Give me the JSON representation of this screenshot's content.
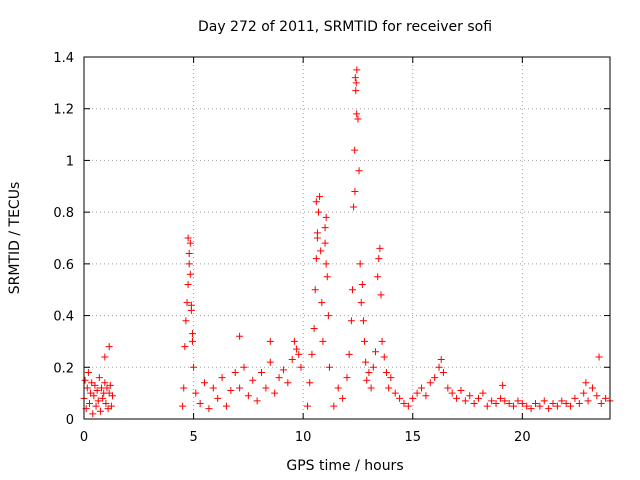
{
  "chart_data": {
    "type": "scatter",
    "title": "Day 272 of 2011, SRMTID for receiver sofi",
    "xlabel": "GPS time / hours",
    "ylabel": "SRMTID / TECUs",
    "xlim": [
      0,
      24
    ],
    "ylim": [
      0,
      1.4
    ],
    "xticks": [
      0,
      5,
      10,
      15,
      20
    ],
    "xtick_labels": [
      "0",
      "5",
      "10",
      "15",
      "20"
    ],
    "yticks": [
      0,
      0.2,
      0.4,
      0.6,
      0.8,
      1.0,
      1.2,
      1.4
    ],
    "ytick_labels": [
      "0",
      "0.2",
      "0.4",
      "0.6",
      "0.8",
      "1",
      "1.2",
      "1.4"
    ],
    "grid": true,
    "legend": "none",
    "marker": "+",
    "color": "#ff0000",
    "series": [
      {
        "x": [
          0.0,
          0.05,
          0.1,
          0.15,
          0.2,
          0.25,
          0.3,
          0.35,
          0.4,
          0.45,
          0.5,
          0.55,
          0.6,
          0.65,
          0.7,
          0.75,
          0.8,
          0.85,
          0.9,
          0.95,
          1.0,
          1.05,
          1.1,
          1.15,
          1.2,
          1.25,
          1.3,
          0.95,
          1.15,
          4.5,
          4.55,
          4.6,
          4.65,
          4.7,
          4.75,
          4.8,
          4.85,
          4.9,
          4.95,
          5.0,
          4.75,
          4.8,
          4.85,
          4.9,
          4.95,
          5.1,
          5.3,
          5.5,
          5.7,
          5.9,
          6.1,
          6.3,
          6.5,
          6.7,
          6.9,
          7.1,
          7.3,
          7.5,
          7.7,
          7.9,
          8.1,
          8.3,
          8.5,
          8.7,
          8.9,
          9.1,
          9.3,
          9.5,
          9.7,
          9.9,
          7.1,
          8.5,
          9.6,
          9.8,
          10.2,
          10.3,
          10.4,
          10.5,
          10.55,
          10.6,
          10.65,
          10.7,
          10.75,
          10.8,
          10.85,
          10.9,
          11.0,
          11.05,
          11.1,
          11.15,
          11.2,
          10.6,
          10.65,
          11.0,
          11.05,
          11.4,
          11.6,
          11.8,
          12.0,
          12.1,
          12.2,
          12.25,
          12.3,
          12.35,
          12.4,
          12.45,
          12.5,
          12.55,
          12.6,
          12.65,
          12.7,
          12.75,
          12.8,
          12.85,
          12.9,
          13.0,
          13.1,
          13.2,
          13.3,
          13.4,
          13.45,
          13.5,
          13.55,
          13.6,
          13.7,
          13.8,
          13.9,
          14.0,
          14.2,
          14.4,
          14.6,
          12.38,
          12.42,
          12.36,
          12.44,
          14.8,
          15.0,
          15.2,
          15.4,
          15.6,
          15.8,
          16.0,
          16.2,
          16.3,
          16.4,
          16.6,
          16.8,
          17.0,
          17.2,
          17.4,
          17.6,
          17.8,
          18.0,
          18.2,
          18.4,
          18.6,
          18.8,
          19.0,
          19.2,
          19.4,
          19.6,
          19.8,
          20.0,
          20.2,
          20.4,
          20.6,
          20.8,
          21.0,
          21.2,
          21.4,
          21.6,
          21.8,
          22.0,
          22.2,
          22.4,
          22.6,
          22.8,
          23.0,
          23.2,
          23.4,
          23.6,
          23.8,
          24.0,
          19.1,
          22.9,
          23.5
        ],
        "y": [
          0.08,
          0.15,
          0.04,
          0.12,
          0.18,
          0.06,
          0.1,
          0.14,
          0.02,
          0.09,
          0.13,
          0.05,
          0.11,
          0.07,
          0.16,
          0.03,
          0.12,
          0.08,
          0.1,
          0.14,
          0.06,
          0.12,
          0.04,
          0.1,
          0.13,
          0.05,
          0.09,
          0.24,
          0.28,
          0.05,
          0.12,
          0.28,
          0.38,
          0.45,
          0.52,
          0.6,
          0.68,
          0.44,
          0.3,
          0.2,
          0.7,
          0.64,
          0.56,
          0.42,
          0.33,
          0.1,
          0.06,
          0.14,
          0.04,
          0.12,
          0.08,
          0.16,
          0.05,
          0.11,
          0.18,
          0.12,
          0.2,
          0.09,
          0.15,
          0.07,
          0.18,
          0.12,
          0.22,
          0.1,
          0.16,
          0.19,
          0.14,
          0.23,
          0.27,
          0.2,
          0.32,
          0.3,
          0.3,
          0.25,
          0.05,
          0.14,
          0.25,
          0.35,
          0.5,
          0.62,
          0.72,
          0.8,
          0.86,
          0.65,
          0.45,
          0.3,
          0.74,
          0.78,
          0.55,
          0.4,
          0.2,
          0.84,
          0.7,
          0.68,
          0.6,
          0.05,
          0.12,
          0.08,
          0.16,
          0.25,
          0.38,
          0.5,
          0.82,
          1.04,
          1.27,
          1.35,
          1.16,
          0.96,
          0.6,
          0.45,
          0.52,
          0.38,
          0.3,
          0.22,
          0.15,
          0.18,
          0.12,
          0.2,
          0.26,
          0.55,
          0.62,
          0.66,
          0.48,
          0.3,
          0.24,
          0.18,
          0.12,
          0.16,
          0.1,
          0.08,
          0.06,
          1.32,
          1.3,
          0.88,
          1.18,
          0.05,
          0.08,
          0.1,
          0.12,
          0.09,
          0.14,
          0.16,
          0.2,
          0.23,
          0.18,
          0.12,
          0.1,
          0.08,
          0.11,
          0.07,
          0.09,
          0.06,
          0.08,
          0.1,
          0.05,
          0.07,
          0.06,
          0.08,
          0.07,
          0.06,
          0.05,
          0.07,
          0.06,
          0.05,
          0.04,
          0.06,
          0.05,
          0.07,
          0.04,
          0.06,
          0.05,
          0.07,
          0.06,
          0.05,
          0.08,
          0.06,
          0.1,
          0.07,
          0.12,
          0.09,
          0.06,
          0.08,
          0.07,
          0.13,
          0.14,
          0.24
        ]
      }
    ]
  }
}
